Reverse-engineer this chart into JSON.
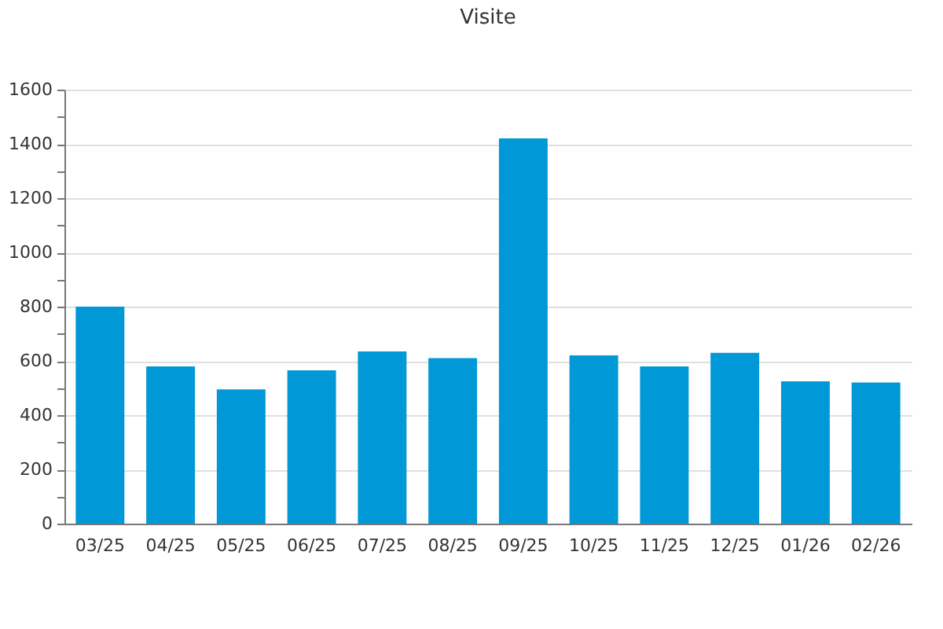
{
  "chart_data": {
    "type": "bar",
    "title": "Visite",
    "categories": [
      "03/25",
      "04/25",
      "05/25",
      "06/25",
      "07/25",
      "08/25",
      "09/25",
      "10/25",
      "11/25",
      "12/25",
      "01/26",
      "02/26"
    ],
    "values": [
      800,
      580,
      495,
      565,
      635,
      610,
      1420,
      620,
      580,
      630,
      525,
      520
    ],
    "color": "#0098d6",
    "ylim": [
      0,
      1600
    ],
    "yticks": [
      0,
      {
        "value": 100,
        "label": null
      },
      200,
      {
        "value": 300,
        "label": null
      },
      400,
      {
        "value": 500,
        "label": null
      },
      600,
      {
        "value": 700,
        "label": null
      },
      800,
      {
        "value": 900,
        "label": null
      },
      1000,
      {
        "value": 1100,
        "label": null
      },
      1200,
      {
        "value": 1300,
        "label": null
      },
      1400,
      {
        "value": 1500,
        "label": null
      },
      1600
    ],
    "grid": "y"
  }
}
